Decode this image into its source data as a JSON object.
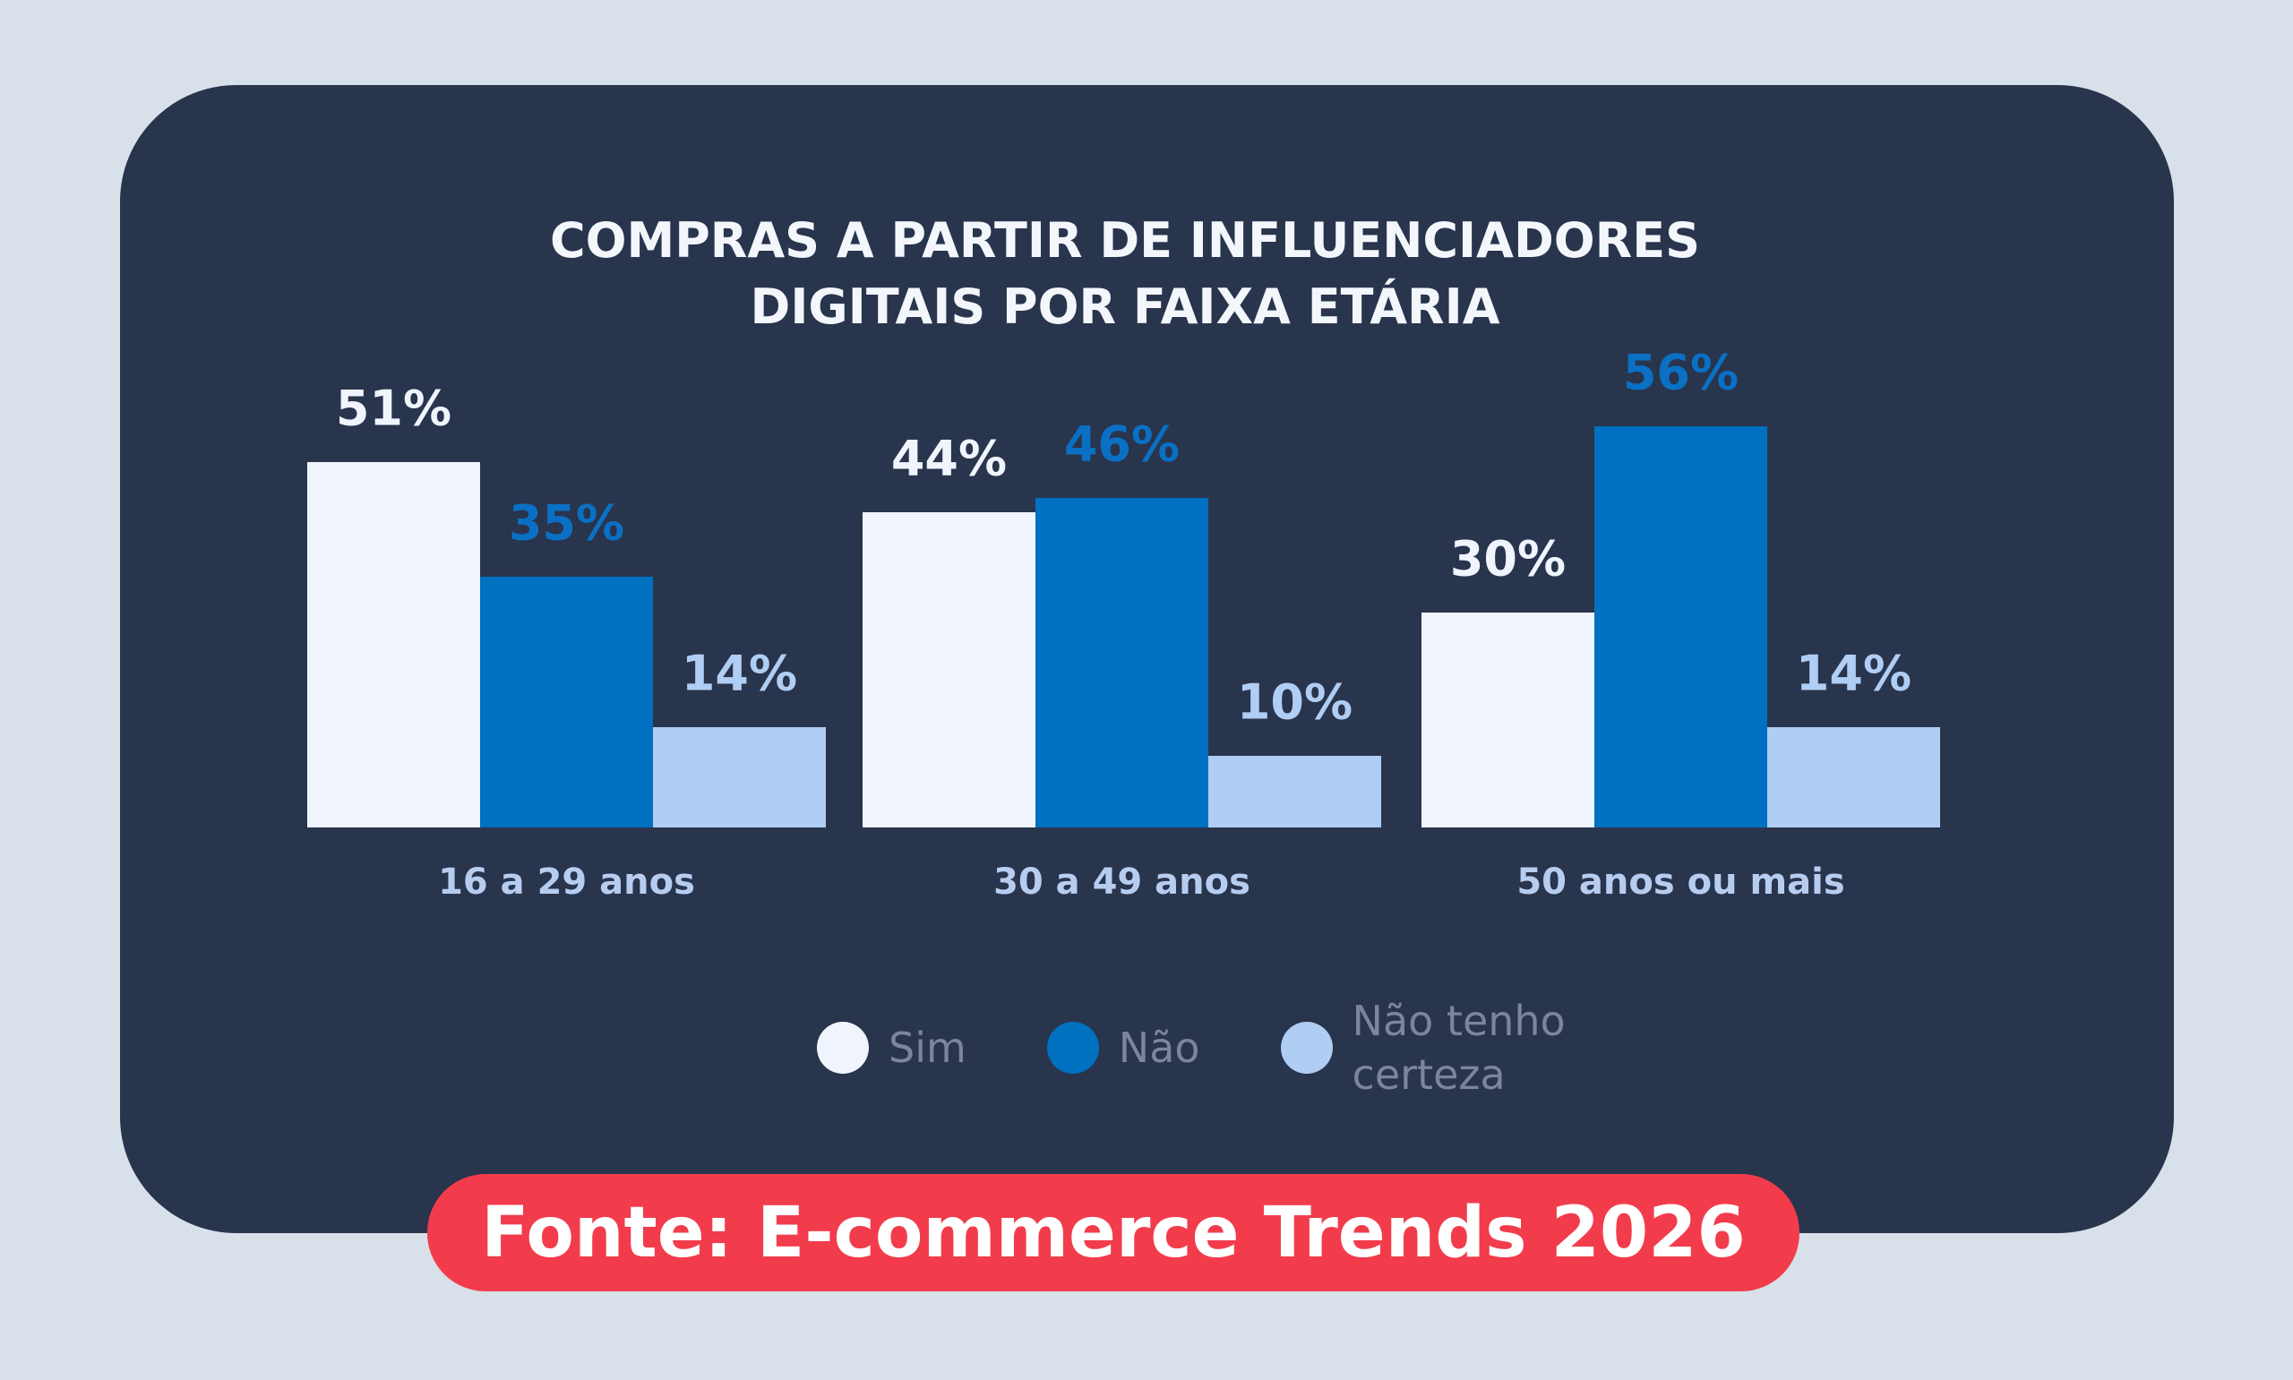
{
  "chart_data": {
    "type": "bar",
    "title": "COMPRAS A PARTIR DE INFLUENCIADORES DIGITAIS POR FAIXA ETÁRIA",
    "categories": [
      "16 a 29 anos",
      "30 a 49 anos",
      "50 anos ou mais"
    ],
    "series": [
      {
        "name": "Sim",
        "color": "#f0f5fd",
        "values": [
          51,
          44,
          30
        ],
        "value_labels": [
          "51%",
          "44%",
          "30%"
        ]
      },
      {
        "name": "Não",
        "color": "#0070c0",
        "values": [
          35,
          46,
          56
        ],
        "value_labels": [
          "35%",
          "46%",
          "56%"
        ]
      },
      {
        "name": "Não tenho certeza",
        "color": "#b0cdf3",
        "values": [
          14,
          10,
          14
        ],
        "value_labels": [
          "14%",
          "10%",
          "14%"
        ]
      }
    ],
    "source": "Fonte: E-commerce Trends 2026"
  }
}
